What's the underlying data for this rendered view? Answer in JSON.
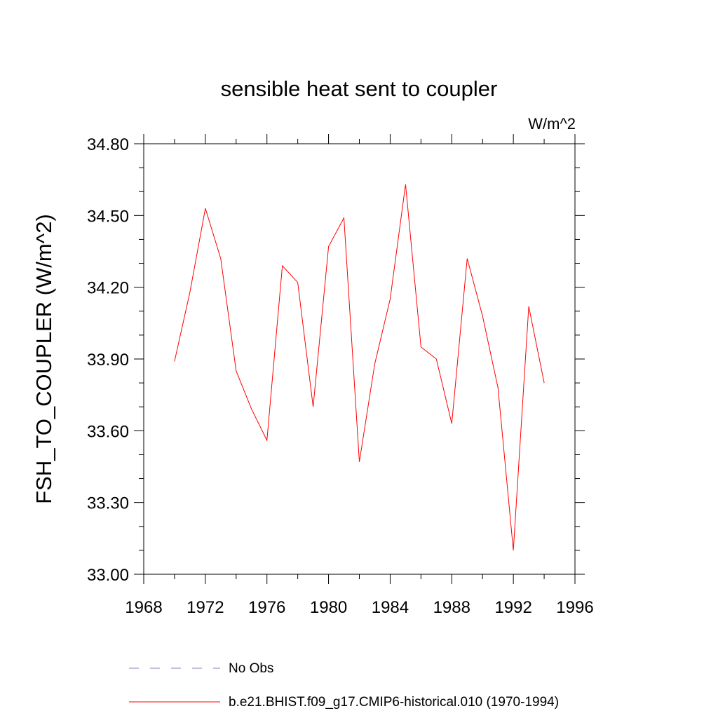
{
  "chart_data": {
    "type": "line",
    "title": "sensible heat sent to coupler",
    "units_label": "W/m^2",
    "ylabel": "FSH_TO_COUPLER  (W/m^2)",
    "xlabel": "",
    "xlim": [
      1968,
      1996
    ],
    "ylim": [
      33.0,
      34.8
    ],
    "x_ticks": [
      "1968",
      "1972",
      "1976",
      "1980",
      "1984",
      "1988",
      "1992",
      "1996"
    ],
    "y_ticks": [
      "33.00",
      "33.30",
      "33.60",
      "33.90",
      "34.20",
      "34.50",
      "34.80"
    ],
    "x_minor_step": 2,
    "y_minor_step": 0.1,
    "grid": false,
    "legend_position": "bottom",
    "series": [
      {
        "name": "b.e21.BHIST.f09_g17.CMIP6-historical.010 (1970-1994)",
        "color": "#ff0000",
        "x": [
          1970,
          1971,
          1972,
          1973,
          1974,
          1975,
          1976,
          1977,
          1978,
          1979,
          1980,
          1981,
          1982,
          1983,
          1984,
          1985,
          1986,
          1987,
          1988,
          1989,
          1990,
          1991,
          1992,
          1993,
          1994
        ],
        "y": [
          33.89,
          34.18,
          34.53,
          34.32,
          33.85,
          33.69,
          33.56,
          34.29,
          34.22,
          33.7,
          34.37,
          34.49,
          33.47,
          33.88,
          34.15,
          34.63,
          33.95,
          33.9,
          33.63,
          34.32,
          34.08,
          33.78,
          33.1,
          34.12,
          33.8
        ]
      }
    ],
    "legend": [
      {
        "label": "No Obs",
        "style": "dashed",
        "color": "#8080c0"
      },
      {
        "label": "b.e21.BHIST.f09_g17.CMIP6-historical.010 (1970-1994)",
        "style": "solid",
        "color": "#ff0000"
      }
    ]
  }
}
